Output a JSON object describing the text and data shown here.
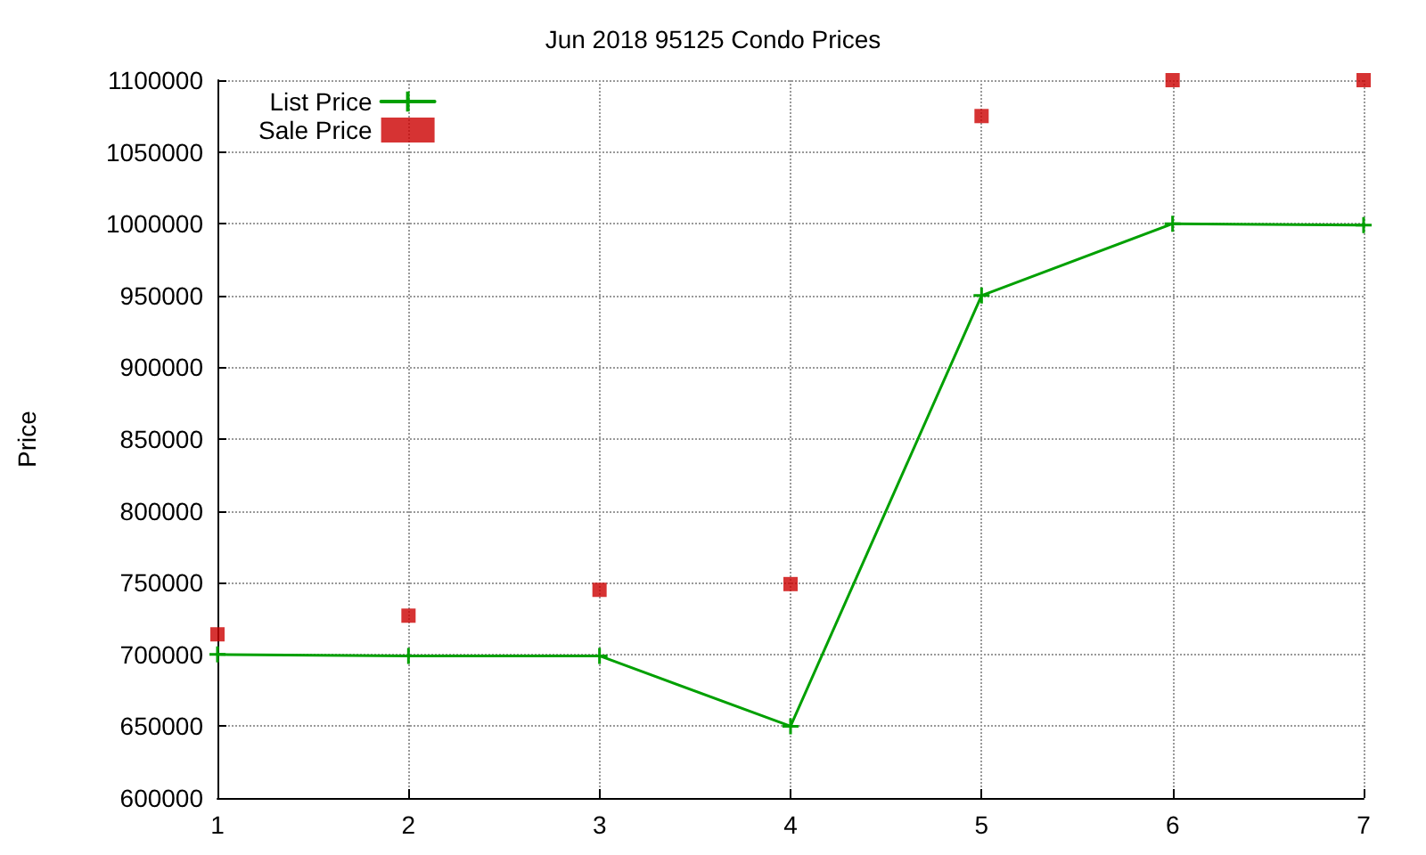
{
  "chart_data": {
    "type": "line",
    "title": "Jun 2018 95125 Condo Prices",
    "ylabel": "Price",
    "x": [
      1,
      2,
      3,
      4,
      5,
      6,
      7
    ],
    "series": [
      {
        "name": "List Price",
        "color": "#00a000",
        "marker": "cross",
        "values": [
          700000,
          699000,
          699000,
          650000,
          950000,
          1000000,
          999000
        ]
      },
      {
        "name": "Sale Price",
        "type": "scatter",
        "color": "#cc0000",
        "marker": "square",
        "values": [
          714000,
          727000,
          745000,
          749000,
          1075000,
          1100000,
          1100000
        ]
      }
    ],
    "xlim": [
      1,
      7
    ],
    "xticks": [
      1,
      2,
      3,
      4,
      5,
      6,
      7
    ],
    "ylim": [
      600000,
      1100000
    ],
    "yticks": [
      600000,
      650000,
      700000,
      750000,
      800000,
      850000,
      900000,
      950000,
      1000000,
      1050000,
      1100000
    ],
    "grid": true,
    "legend": "top left"
  }
}
